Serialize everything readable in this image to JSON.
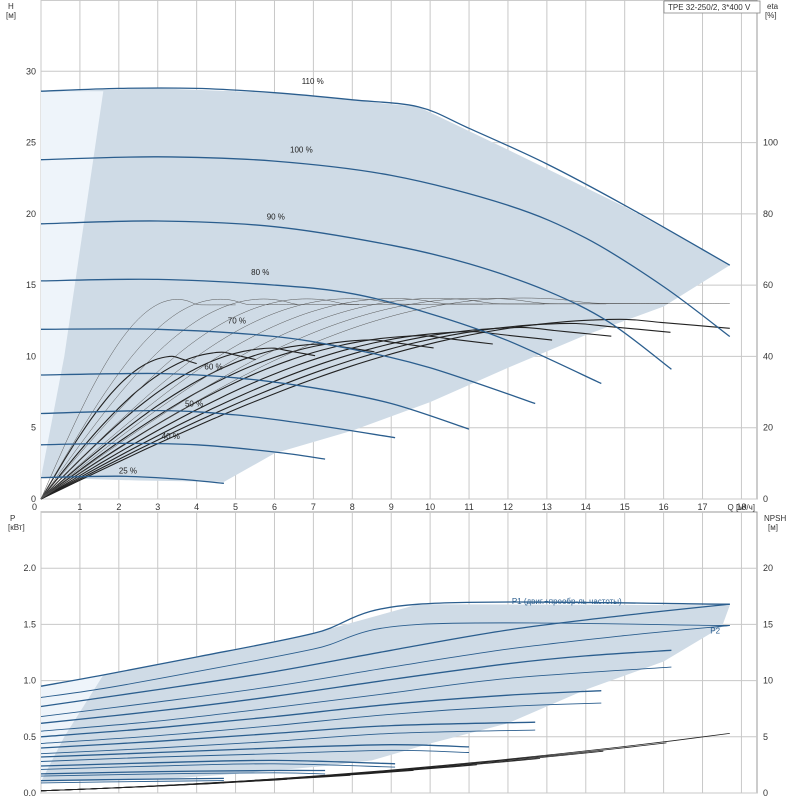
{
  "header": {
    "pump_label": "TPE 32-250/2, 3*400 V"
  },
  "colors": {
    "envelope": "#cfdbe6",
    "envelope_light": "#eef4fa",
    "speed_curve": "#2b5e8e",
    "eff_curve": "#222222",
    "grid": "#c8c8c8"
  },
  "chart_data": [
    {
      "type": "line",
      "x_label": "Q [м³/ч]",
      "y_label": [
        "H",
        "[м]"
      ],
      "y2_label": [
        "eta",
        "[%]"
      ],
      "xlim": [
        0,
        18.4
      ],
      "ylim": [
        0,
        35
      ],
      "y2lim": [
        0,
        140
      ],
      "x_ticks": [
        0,
        1,
        2,
        3,
        4,
        5,
        6,
        7,
        8,
        9,
        10,
        11,
        12,
        13,
        14,
        15,
        16,
        17,
        18
      ],
      "y_ticks": [
        0,
        5,
        10,
        15,
        20,
        25,
        30
      ],
      "y2_ticks": [
        0,
        20,
        40,
        60,
        80,
        100
      ],
      "grid": true,
      "envelope": [
        [
          0,
          28.6
        ],
        [
          3,
          28.8
        ],
        [
          6,
          28.5
        ],
        [
          9.7,
          27.5
        ],
        [
          12,
          24.5
        ],
        [
          15,
          20.5
        ],
        [
          17.2,
          17.2
        ],
        [
          17.7,
          16.4
        ],
        [
          16,
          13.5
        ],
        [
          14,
          11.5
        ],
        [
          12,
          9.2
        ],
        [
          10,
          6.8
        ],
        [
          8,
          4.8
        ],
        [
          6,
          3.2
        ],
        [
          4.7,
          1.2
        ],
        [
          2.5,
          1.3
        ],
        [
          0,
          1.5
        ]
      ],
      "envelope_light": [
        [
          0,
          28.6
        ],
        [
          1.6,
          28.6
        ],
        [
          0.6,
          10
        ],
        [
          0,
          1.5
        ]
      ],
      "speed_curves": [
        {
          "label": "110 %",
          "label_at": [
            6.7,
            29.1
          ],
          "points": [
            [
              0,
              28.6
            ],
            [
              2,
              28.8
            ],
            [
              4,
              28.8
            ],
            [
              6,
              28.5
            ],
            [
              8,
              28.0
            ],
            [
              9.7,
              27.5
            ],
            [
              11,
              26.0
            ],
            [
              13,
              23.5
            ],
            [
              15,
              20.6
            ],
            [
              17,
              17.5
            ],
            [
              17.7,
              16.4
            ]
          ]
        },
        {
          "label": "100 %",
          "label_at": [
            6.4,
            24.3
          ],
          "points": [
            [
              0,
              23.8
            ],
            [
              3,
              24.0
            ],
            [
              6,
              23.7
            ],
            [
              9,
              22.7
            ],
            [
              12,
              20.6
            ],
            [
              14,
              18.3
            ],
            [
              16,
              14.9
            ],
            [
              17.7,
              11.4
            ]
          ]
        },
        {
          "label": "90 %",
          "label_at": [
            5.8,
            19.6
          ],
          "points": [
            [
              0,
              19.3
            ],
            [
              3,
              19.5
            ],
            [
              6,
              19.1
            ],
            [
              9,
              17.8
            ],
            [
              11,
              16.5
            ],
            [
              13,
              14.6
            ],
            [
              14.6,
              12.4
            ],
            [
              16.2,
              9.1
            ]
          ]
        },
        {
          "label": "80 %",
          "label_at": [
            5.4,
            15.7
          ],
          "points": [
            [
              0,
              15.3
            ],
            [
              3,
              15.4
            ],
            [
              6,
              15.0
            ],
            [
              8,
              14.4
            ],
            [
              10,
              13.0
            ],
            [
              12,
              11.1
            ],
            [
              14.4,
              8.1
            ]
          ]
        },
        {
          "label": "70 %",
          "label_at": [
            4.8,
            12.3
          ],
          "points": [
            [
              0,
              11.9
            ],
            [
              3,
              11.9
            ],
            [
              6,
              11.4
            ],
            [
              8,
              10.5
            ],
            [
              10,
              9.2
            ],
            [
              12.7,
              6.7
            ]
          ]
        },
        {
          "label": "60 %",
          "label_at": [
            4.2,
            9.1
          ],
          "points": [
            [
              0,
              8.7
            ],
            [
              3,
              8.8
            ],
            [
              5,
              8.5
            ],
            [
              7,
              7.8
            ],
            [
              9,
              6.7
            ],
            [
              11,
              4.9
            ]
          ]
        },
        {
          "label": "50 %",
          "label_at": [
            3.7,
            6.5
          ],
          "points": [
            [
              0,
              6.0
            ],
            [
              3,
              6.2
            ],
            [
              5,
              5.9
            ],
            [
              7,
              5.2
            ],
            [
              9.1,
              4.3
            ]
          ]
        },
        {
          "label": "40 %",
          "label_at": [
            3.1,
            4.2
          ],
          "points": [
            [
              0,
              3.8
            ],
            [
              2,
              3.9
            ],
            [
              4,
              3.8
            ],
            [
              6,
              3.3
            ],
            [
              7.3,
              2.8
            ]
          ]
        },
        {
          "label": "25 %",
          "label_at": [
            2.0,
            1.8
          ],
          "points": [
            [
              0,
              1.5
            ],
            [
              2,
              1.6
            ],
            [
              3.5,
              1.4
            ],
            [
              4.7,
              1.1
            ]
          ]
        }
      ]
    },
    {
      "type": "line",
      "y_label": [
        "P",
        "[кВт]"
      ],
      "y2_label": [
        "NPSH",
        "[м]"
      ],
      "xlim": [
        0,
        18.4
      ],
      "ylim": [
        0,
        2.5
      ],
      "y2lim": [
        0,
        25
      ],
      "y_ticks": [
        0.0,
        0.5,
        1.0,
        1.5,
        2.0
      ],
      "y_tick_labels": [
        "0.0",
        "0.5",
        "1.0",
        "1.5",
        "2.0"
      ],
      "y2_ticks": [
        0,
        5,
        10,
        15,
        20
      ],
      "grid": true,
      "series_labels": [
        {
          "name": "P1 (двиг.+преобр-ль частоты)",
          "at": [
            12.1,
            1.68
          ]
        },
        {
          "name": "P2",
          "at": [
            17.2,
            1.42
          ]
        }
      ],
      "envelope": [
        [
          0,
          0.95
        ],
        [
          1.6,
          1.05
        ],
        [
          4,
          1.21
        ],
        [
          7,
          1.42
        ],
        [
          9.7,
          1.68
        ],
        [
          17.7,
          1.67
        ],
        [
          17.5,
          1.48
        ],
        [
          16,
          1.17
        ],
        [
          14,
          0.92
        ],
        [
          12,
          0.62
        ],
        [
          10,
          0.44
        ],
        [
          8.5,
          0.29
        ],
        [
          7.3,
          0.24
        ],
        [
          5,
          0.17
        ],
        [
          3,
          0.12
        ],
        [
          0,
          0.1
        ]
      ],
      "envelope_light": [
        [
          0,
          0.95
        ],
        [
          1.6,
          1.05
        ],
        [
          0.6,
          0.5
        ],
        [
          0,
          0.1
        ]
      ],
      "p1_curves": [
        [
          [
            0,
            0.95
          ],
          [
            1.6,
            1.05
          ],
          [
            4,
            1.21
          ],
          [
            7,
            1.42
          ],
          [
            9.7,
            1.68
          ],
          [
            17.7,
            1.68
          ]
        ],
        [
          [
            0,
            0.77
          ],
          [
            3,
            0.92
          ],
          [
            6,
            1.08
          ],
          [
            9,
            1.27
          ],
          [
            12,
            1.45
          ],
          [
            15,
            1.58
          ],
          [
            17.7,
            1.68
          ]
        ],
        [
          [
            0,
            0.62
          ],
          [
            3,
            0.73
          ],
          [
            6,
            0.86
          ],
          [
            9,
            1.01
          ],
          [
            12,
            1.15
          ],
          [
            14,
            1.22
          ],
          [
            16.2,
            1.27
          ]
        ],
        [
          [
            0,
            0.5
          ],
          [
            3,
            0.58
          ],
          [
            6,
            0.68
          ],
          [
            9,
            0.79
          ],
          [
            12,
            0.87
          ],
          [
            14.4,
            0.91
          ]
        ],
        [
          [
            0,
            0.4
          ],
          [
            3,
            0.46
          ],
          [
            6,
            0.53
          ],
          [
            9,
            0.6
          ],
          [
            12.7,
            0.63
          ]
        ],
        [
          [
            0,
            0.32
          ],
          [
            3,
            0.36
          ],
          [
            6,
            0.4
          ],
          [
            9,
            0.43
          ],
          [
            11,
            0.41
          ]
        ],
        [
          [
            0,
            0.24
          ],
          [
            3,
            0.27
          ],
          [
            6,
            0.29
          ],
          [
            9.1,
            0.26
          ]
        ],
        [
          [
            0,
            0.17
          ],
          [
            3,
            0.19
          ],
          [
            6,
            0.2
          ],
          [
            7.3,
            0.2
          ]
        ],
        [
          [
            0,
            0.11
          ],
          [
            2,
            0.12
          ],
          [
            4.7,
            0.13
          ]
        ]
      ],
      "p2_curves": [
        [
          [
            0,
            0.85
          ],
          [
            1.6,
            0.93
          ],
          [
            4,
            1.08
          ],
          [
            7,
            1.28
          ],
          [
            9.7,
            1.5
          ],
          [
            17.7,
            1.49
          ]
        ],
        [
          [
            0,
            0.68
          ],
          [
            3,
            0.81
          ],
          [
            6,
            0.95
          ],
          [
            9,
            1.12
          ],
          [
            12,
            1.28
          ],
          [
            15,
            1.4
          ],
          [
            17.7,
            1.49
          ]
        ],
        [
          [
            0,
            0.55
          ],
          [
            3,
            0.64
          ],
          [
            6,
            0.76
          ],
          [
            9,
            0.89
          ],
          [
            12,
            1.02
          ],
          [
            16.2,
            1.12
          ]
        ],
        [
          [
            0,
            0.44
          ],
          [
            3,
            0.51
          ],
          [
            6,
            0.6
          ],
          [
            9,
            0.7
          ],
          [
            12,
            0.77
          ],
          [
            14.4,
            0.8
          ]
        ],
        [
          [
            0,
            0.35
          ],
          [
            3,
            0.4
          ],
          [
            6,
            0.46
          ],
          [
            9,
            0.53
          ],
          [
            12.7,
            0.56
          ]
        ],
        [
          [
            0,
            0.28
          ],
          [
            3,
            0.32
          ],
          [
            6,
            0.35
          ],
          [
            9,
            0.38
          ],
          [
            11,
            0.36
          ]
        ],
        [
          [
            0,
            0.21
          ],
          [
            3,
            0.24
          ],
          [
            6,
            0.26
          ],
          [
            9.1,
            0.23
          ]
        ],
        [
          [
            0,
            0.15
          ],
          [
            3,
            0.17
          ],
          [
            6,
            0.18
          ],
          [
            7.3,
            0.17
          ]
        ],
        [
          [
            0,
            0.09
          ],
          [
            2,
            0.1
          ],
          [
            4.7,
            0.11
          ]
        ]
      ]
    }
  ]
}
